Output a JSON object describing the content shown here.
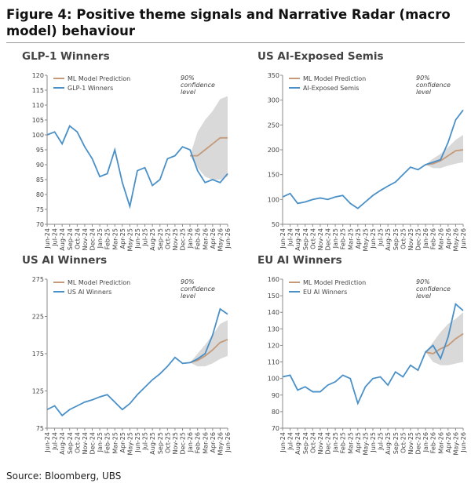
{
  "title": "Figure 4: Positive theme signals and Narrative Radar (macro model) behaviour",
  "source": "Source: Bloomberg, UBS",
  "chart_data": [
    {
      "type": "line",
      "title": "GLP-1 Winners",
      "annotation": "90% confidence level",
      "categories": [
        "Jun-24",
        "Jul-24",
        "Aug-24",
        "Sep-24",
        "Oct-24",
        "Nov-24",
        "Dec-24",
        "Jan-25",
        "Feb-25",
        "Mar-25",
        "Apr-25",
        "May-25",
        "Jun-25",
        "Jul-25",
        "Aug-25",
        "Sep-25",
        "Oct-25",
        "Nov-25",
        "Dec-25",
        "Jan-26",
        "Feb-26",
        "Mar-26",
        "Apr-26",
        "May-26",
        "Jun-26"
      ],
      "ylim": [
        70,
        120
      ],
      "yticks": [
        70,
        75,
        80,
        85,
        90,
        95,
        100,
        105,
        110,
        115,
        120
      ],
      "band": {
        "color": "#d9d9d9",
        "lower": [
          null,
          null,
          null,
          null,
          null,
          null,
          null,
          null,
          null,
          null,
          null,
          null,
          null,
          null,
          null,
          null,
          null,
          null,
          null,
          93,
          89,
          86,
          85,
          85,
          86
        ],
        "upper": [
          null,
          null,
          null,
          null,
          null,
          null,
          null,
          null,
          null,
          null,
          null,
          null,
          null,
          null,
          null,
          null,
          null,
          null,
          null,
          93,
          101,
          105,
          108,
          112,
          113
        ]
      },
      "series": [
        {
          "name": "ML Model Prediction",
          "color": "#c49a7a",
          "values": [
            null,
            null,
            null,
            null,
            null,
            null,
            null,
            null,
            null,
            null,
            null,
            null,
            null,
            null,
            null,
            null,
            null,
            null,
            null,
            93,
            93,
            95,
            97,
            99,
            99
          ]
        },
        {
          "name": "GLP-1 Winners",
          "color": "#4a90c8",
          "values": [
            100,
            101,
            97,
            103,
            101,
            96,
            92,
            86,
            87,
            95,
            84,
            76,
            88,
            89,
            83,
            85,
            92,
            93,
            96,
            95,
            88,
            84,
            85,
            84,
            87
          ]
        }
      ]
    },
    {
      "type": "line",
      "title": "US AI-Exposed Semis",
      "annotation": "90% confidence level",
      "categories": [
        "Jun-24",
        "Jul-24",
        "Aug-24",
        "Sep-24",
        "Oct-24",
        "Nov-24",
        "Dec-24",
        "Jan-25",
        "Feb-25",
        "Mar-25",
        "Apr-25",
        "May-25",
        "Jun-25",
        "Jul-25",
        "Aug-25",
        "Sep-25",
        "Oct-25",
        "Nov-25",
        "Dec-25",
        "Jan-26",
        "Feb-26",
        "Mar-26",
        "Apr-26",
        "May-26",
        "Jun-26"
      ],
      "ylim": [
        50,
        350
      ],
      "yticks": [
        50,
        100,
        150,
        200,
        250,
        300,
        350
      ],
      "band": {
        "color": "#d9d9d9",
        "lower": [
          null,
          null,
          null,
          null,
          null,
          null,
          null,
          null,
          null,
          null,
          null,
          null,
          null,
          null,
          null,
          null,
          null,
          null,
          null,
          170,
          163,
          163,
          168,
          172,
          175
        ],
        "upper": [
          null,
          null,
          null,
          null,
          null,
          null,
          null,
          null,
          null,
          null,
          null,
          null,
          null,
          null,
          null,
          null,
          null,
          null,
          null,
          170,
          182,
          192,
          205,
          220,
          230
        ]
      },
      "series": [
        {
          "name": "ML Model Prediction",
          "color": "#c49a7a",
          "values": [
            null,
            null,
            null,
            null,
            null,
            null,
            null,
            null,
            null,
            null,
            null,
            null,
            null,
            null,
            null,
            null,
            null,
            null,
            null,
            170,
            172,
            178,
            188,
            198,
            200
          ]
        },
        {
          "name": "AI-Exposed Semis",
          "color": "#4a90c8",
          "values": [
            105,
            112,
            92,
            95,
            100,
            103,
            100,
            105,
            108,
            92,
            82,
            95,
            108,
            118,
            127,
            135,
            150,
            165,
            160,
            170,
            175,
            180,
            215,
            260,
            280
          ]
        }
      ]
    },
    {
      "type": "line",
      "title": "US AI Winners",
      "annotation": "90% confidence level",
      "categories": [
        "Jun-24",
        "Jul-24",
        "Aug-24",
        "Sep-24",
        "Oct-24",
        "Nov-24",
        "Dec-24",
        "Jan-25",
        "Feb-25",
        "Mar-25",
        "Apr-25",
        "May-25",
        "Jun-25",
        "Jul-25",
        "Aug-25",
        "Sep-25",
        "Oct-25",
        "Nov-25",
        "Dec-25",
        "Jan-26",
        "Feb-26",
        "Mar-26",
        "Apr-26",
        "May-26",
        "Jun-26"
      ],
      "ylim": [
        75,
        275
      ],
      "yticks": [
        75,
        125,
        175,
        225,
        275
      ],
      "band": {
        "color": "#d9d9d9",
        "lower": [
          null,
          null,
          null,
          null,
          null,
          null,
          null,
          null,
          null,
          null,
          null,
          null,
          null,
          null,
          null,
          null,
          null,
          null,
          null,
          163,
          158,
          158,
          162,
          168,
          172
        ],
        "upper": [
          null,
          null,
          null,
          null,
          null,
          null,
          null,
          null,
          null,
          null,
          null,
          null,
          null,
          null,
          null,
          null,
          null,
          null,
          null,
          163,
          175,
          187,
          200,
          215,
          220
        ]
      },
      "series": [
        {
          "name": "ML Model Prediction",
          "color": "#c49a7a",
          "values": [
            null,
            null,
            null,
            null,
            null,
            null,
            null,
            null,
            null,
            null,
            null,
            null,
            null,
            null,
            null,
            null,
            null,
            null,
            null,
            163,
            166,
            172,
            180,
            190,
            194
          ]
        },
        {
          "name": "US AI Winners",
          "color": "#4a90c8",
          "values": [
            100,
            105,
            92,
            100,
            105,
            110,
            113,
            117,
            120,
            110,
            100,
            108,
            120,
            130,
            140,
            148,
            158,
            170,
            162,
            163,
            168,
            175,
            200,
            235,
            228
          ]
        }
      ]
    },
    {
      "type": "line",
      "title": "EU AI Winners",
      "annotation": "90% confidence level",
      "categories": [
        "Jun-24",
        "Jul-24",
        "Aug-24",
        "Sep-24",
        "Oct-24",
        "Nov-24",
        "Dec-24",
        "Jan-25",
        "Feb-25",
        "Mar-25",
        "Apr-25",
        "May-25",
        "Jun-25",
        "Jul-25",
        "Aug-25",
        "Sep-25",
        "Oct-25",
        "Nov-25",
        "Dec-25",
        "Jan-26",
        "Feb-26",
        "Mar-26",
        "Apr-26",
        "May-26",
        "Jun-26"
      ],
      "ylim": [
        70,
        160
      ],
      "yticks": [
        70,
        80,
        90,
        100,
        110,
        120,
        130,
        140,
        150,
        160
      ],
      "band": {
        "color": "#d9d9d9",
        "lower": [
          null,
          null,
          null,
          null,
          null,
          null,
          null,
          null,
          null,
          null,
          null,
          null,
          null,
          null,
          null,
          null,
          null,
          null,
          null,
          116,
          110,
          108,
          108,
          109,
          110
        ],
        "upper": [
          null,
          null,
          null,
          null,
          null,
          null,
          null,
          null,
          null,
          null,
          null,
          null,
          null,
          null,
          null,
          null,
          null,
          null,
          null,
          116,
          122,
          128,
          133,
          136,
          140
        ]
      },
      "series": [
        {
          "name": "ML Model Prediction",
          "color": "#c49a7a",
          "values": [
            null,
            null,
            null,
            null,
            null,
            null,
            null,
            null,
            null,
            null,
            null,
            null,
            null,
            null,
            null,
            null,
            null,
            null,
            null,
            116,
            115,
            118,
            120,
            124,
            127
          ]
        },
        {
          "name": "EU AI Winners",
          "color": "#4a90c8",
          "values": [
            101,
            102,
            93,
            95,
            92,
            92,
            96,
            98,
            102,
            100,
            85,
            95,
            100,
            101,
            96,
            104,
            101,
            108,
            105,
            116,
            120,
            112,
            125,
            145,
            141
          ]
        }
      ]
    }
  ]
}
